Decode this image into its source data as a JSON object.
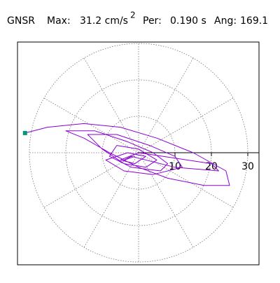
{
  "chart_data": {
    "type": "orbit",
    "title": "GNSR",
    "header": [
      "Max:",
      "31.2 cm/s",
      "2",
      "Per:",
      "0.190 s",
      "Ang:",
      "169.1"
    ],
    "x": [
      -31.2,
      -25,
      -15,
      -5,
      5,
      15,
      24,
      25,
      18,
      8,
      0,
      -8,
      -15,
      -20,
      -12,
      -3,
      4,
      8,
      6,
      -2,
      -8,
      -6,
      0,
      5,
      2,
      -4,
      -10,
      -14,
      -6,
      3,
      10,
      12,
      4,
      -4,
      -9,
      -3,
      2,
      -1,
      -5,
      0,
      20,
      22,
      10,
      -2,
      -4,
      -1
    ],
    "y": [
      5.4,
      7,
      8,
      7,
      4,
      0,
      -5,
      -9,
      -9,
      -7,
      -4,
      0,
      4,
      6,
      6,
      3,
      0,
      -3,
      -5,
      -4,
      -1,
      2,
      1,
      -2,
      -4,
      -3,
      1,
      5,
      5,
      2,
      -1,
      -4,
      -6,
      -5,
      -2,
      0,
      -1,
      -3,
      -2,
      0,
      -3,
      -5,
      -4,
      -1,
      -2,
      -1
    ],
    "color": "#8a00d4",
    "start_color": "#009977",
    "rlim": [
      0,
      30
    ],
    "rticks": [
      10,
      20,
      30
    ],
    "grid": true
  }
}
